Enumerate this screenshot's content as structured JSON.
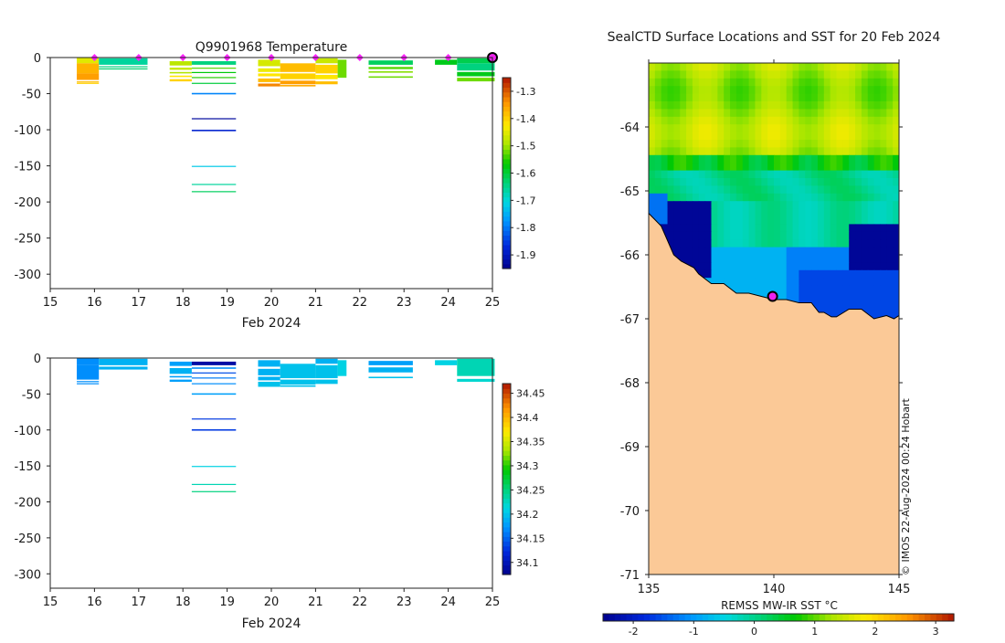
{
  "chart_data": [
    {
      "type": "heatmap",
      "name": "temperature-profile",
      "title": "Q9901968  Temperature",
      "xlabel": "Feb 2024",
      "ylabel": "",
      "xlim": [
        15,
        25
      ],
      "ylim": [
        -320,
        0
      ],
      "xticks": [
        "15",
        "16",
        "17",
        "18",
        "19",
        "20",
        "21",
        "22",
        "23",
        "24",
        "25"
      ],
      "xtick_values": [
        15,
        16,
        17,
        18,
        19,
        20,
        21,
        22,
        23,
        24,
        25
      ],
      "yticks": [
        "0",
        "-50",
        "-100",
        "-150",
        "-200",
        "-250",
        "-300"
      ],
      "ytick_values": [
        0,
        -50,
        -100,
        -150,
        -200,
        -250,
        -300
      ],
      "colorbar": {
        "ticks": [
          "-1.3",
          "-1.4",
          "-1.5",
          "-1.6",
          "-1.7",
          "-1.8",
          "-1.9"
        ],
        "tick_values": [
          -1.3,
          -1.4,
          -1.5,
          -1.6,
          -1.7,
          -1.8,
          -1.9
        ],
        "range": [
          -1.95,
          -1.25
        ]
      },
      "surface_markers": [
        16,
        17,
        18,
        19,
        20,
        21,
        22,
        23,
        24
      ],
      "latest_marker": 25,
      "profiles": [
        {
          "x0": 15.6,
          "x1": 16.1,
          "d0": 0,
          "d1": 8,
          "v": -1.45
        },
        {
          "x0": 15.6,
          "x1": 16.1,
          "d0": 8,
          "d1": 22,
          "v": -1.37
        },
        {
          "x0": 15.6,
          "x1": 16.1,
          "d0": 22,
          "d1": 31,
          "v": -1.35
        },
        {
          "x0": 15.6,
          "x1": 16.1,
          "d0": 33,
          "d1": 34,
          "v": -1.38
        },
        {
          "x0": 15.6,
          "x1": 16.1,
          "d0": 35,
          "d1": 36,
          "v": -1.4
        },
        {
          "x0": 16.1,
          "x1": 17.2,
          "d0": 1,
          "d1": 10,
          "v": -1.66
        },
        {
          "x0": 16.1,
          "x1": 17.2,
          "d0": 12,
          "d1": 13,
          "v": -1.64
        },
        {
          "x0": 16.1,
          "x1": 17.2,
          "d0": 15,
          "d1": 16,
          "v": -1.63
        },
        {
          "x0": 17.7,
          "x1": 18.2,
          "d0": 5,
          "d1": 11,
          "v": -1.48
        },
        {
          "x0": 17.7,
          "x1": 18.2,
          "d0": 14,
          "d1": 17,
          "v": -1.47
        },
        {
          "x0": 17.7,
          "x1": 18.2,
          "d0": 20,
          "d1": 22,
          "v": -1.49
        },
        {
          "x0": 17.7,
          "x1": 18.2,
          "d0": 25,
          "d1": 27,
          "v": -1.42
        },
        {
          "x0": 17.7,
          "x1": 18.2,
          "d0": 30,
          "d1": 33,
          "v": -1.4
        },
        {
          "x0": 18.2,
          "x1": 19.2,
          "d0": 5,
          "d1": 10,
          "v": -1.64
        },
        {
          "x0": 18.2,
          "x1": 19.2,
          "d0": 14,
          "d1": 15,
          "v": -1.53
        },
        {
          "x0": 18.2,
          "x1": 19.2,
          "d0": 20,
          "d1": 21,
          "v": -1.57
        },
        {
          "x0": 18.2,
          "x1": 19.2,
          "d0": 27,
          "d1": 28,
          "v": -1.55
        },
        {
          "x0": 18.2,
          "x1": 19.2,
          "d0": 35,
          "d1": 36,
          "v": -1.6
        },
        {
          "x0": 18.2,
          "x1": 19.2,
          "d0": 49,
          "d1": 51,
          "v": -1.79
        },
        {
          "x0": 18.2,
          "x1": 19.2,
          "d0": 84,
          "d1": 85,
          "v": -1.93
        },
        {
          "x0": 18.2,
          "x1": 19.2,
          "d0": 100,
          "d1": 102,
          "v": -1.88
        },
        {
          "x0": 18.2,
          "x1": 19.2,
          "d0": 150,
          "d1": 151,
          "v": -1.72
        },
        {
          "x0": 18.2,
          "x1": 19.2,
          "d0": 175,
          "d1": 176,
          "v": -1.66
        },
        {
          "x0": 18.2,
          "x1": 19.2,
          "d0": 185,
          "d1": 186,
          "v": -1.62
        },
        {
          "x0": 19.7,
          "x1": 20.2,
          "d0": 3,
          "d1": 12,
          "v": -1.46
        },
        {
          "x0": 19.7,
          "x1": 20.2,
          "d0": 15,
          "d1": 20,
          "v": -1.44
        },
        {
          "x0": 19.7,
          "x1": 20.2,
          "d0": 22,
          "d1": 26,
          "v": -1.42
        },
        {
          "x0": 19.7,
          "x1": 20.2,
          "d0": 29,
          "d1": 34,
          "v": -1.38
        },
        {
          "x0": 19.7,
          "x1": 20.2,
          "d0": 36,
          "d1": 40,
          "v": -1.33
        },
        {
          "x0": 20.2,
          "x1": 21.0,
          "d0": 8,
          "d1": 20,
          "v": -1.38
        },
        {
          "x0": 20.2,
          "x1": 21.0,
          "d0": 22,
          "d1": 30,
          "v": -1.4
        },
        {
          "x0": 20.2,
          "x1": 21.0,
          "d0": 32,
          "d1": 37,
          "v": -1.35
        },
        {
          "x0": 20.2,
          "x1": 21.0,
          "d0": 38,
          "d1": 40,
          "v": -1.36
        },
        {
          "x0": 21.0,
          "x1": 21.5,
          "d0": 1,
          "d1": 8,
          "v": -1.47
        },
        {
          "x0": 21.0,
          "x1": 21.5,
          "d0": 10,
          "d1": 22,
          "v": -1.4
        },
        {
          "x0": 21.0,
          "x1": 21.5,
          "d0": 24,
          "d1": 30,
          "v": -1.42
        },
        {
          "x0": 21.0,
          "x1": 21.5,
          "d0": 33,
          "d1": 37,
          "v": -1.38
        },
        {
          "x0": 21.5,
          "x1": 21.7,
          "d0": 3,
          "d1": 28,
          "v": -1.52
        },
        {
          "x0": 22.2,
          "x1": 23.2,
          "d0": 4,
          "d1": 10,
          "v": -1.62
        },
        {
          "x0": 22.2,
          "x1": 23.2,
          "d0": 13,
          "d1": 16,
          "v": -1.53
        },
        {
          "x0": 22.2,
          "x1": 23.2,
          "d0": 19,
          "d1": 21,
          "v": -1.51
        },
        {
          "x0": 22.2,
          "x1": 23.2,
          "d0": 26,
          "d1": 28,
          "v": -1.52
        },
        {
          "x0": 23.7,
          "x1": 24.2,
          "d0": 3,
          "d1": 10,
          "v": -1.58
        },
        {
          "x0": 24.2,
          "x1": 25.05,
          "d0": 1,
          "d1": 8,
          "v": -1.61
        },
        {
          "x0": 24.2,
          "x1": 25.05,
          "d0": 8,
          "d1": 18,
          "v": -1.64
        },
        {
          "x0": 24.2,
          "x1": 25.05,
          "d0": 20,
          "d1": 26,
          "v": -1.58
        },
        {
          "x0": 24.2,
          "x1": 25.05,
          "d0": 28,
          "d1": 33,
          "v": -1.52
        }
      ]
    },
    {
      "type": "heatmap",
      "name": "salinity-profile",
      "title": "",
      "xlabel": "Feb 2024",
      "xlim": [
        15,
        25
      ],
      "ylim": [
        -320,
        0
      ],
      "xticks": [
        "15",
        "16",
        "17",
        "18",
        "19",
        "20",
        "21",
        "22",
        "23",
        "24",
        "25"
      ],
      "xtick_values": [
        15,
        16,
        17,
        18,
        19,
        20,
        21,
        22,
        23,
        24,
        25
      ],
      "yticks": [
        "0",
        "-50",
        "-100",
        "-150",
        "-200",
        "-250",
        "-300"
      ],
      "ytick_values": [
        0,
        -50,
        -100,
        -150,
        -200,
        -250,
        -300
      ],
      "colorbar": {
        "ticks": [
          "34.45",
          "34.4",
          "34.35",
          "34.3",
          "34.25",
          "34.2",
          "34.15",
          "34.1"
        ],
        "tick_values": [
          34.45,
          34.4,
          34.35,
          34.3,
          34.25,
          34.2,
          34.15,
          34.1
        ],
        "range": [
          34.075,
          34.47
        ]
      },
      "profiles": [
        {
          "x0": 15.6,
          "x1": 16.1,
          "d0": 0,
          "d1": 10,
          "v": 34.17
        },
        {
          "x0": 15.6,
          "x1": 16.1,
          "d0": 10,
          "d1": 30,
          "v": 34.17
        },
        {
          "x0": 15.6,
          "x1": 16.1,
          "d0": 32,
          "d1": 33,
          "v": 34.17
        },
        {
          "x0": 15.6,
          "x1": 16.1,
          "d0": 35,
          "d1": 36,
          "v": 34.17
        },
        {
          "x0": 16.1,
          "x1": 17.2,
          "d0": 1,
          "d1": 10,
          "v": 34.19
        },
        {
          "x0": 16.1,
          "x1": 17.2,
          "d0": 12,
          "d1": 16,
          "v": 34.19
        },
        {
          "x0": 17.7,
          "x1": 18.2,
          "d0": 5,
          "d1": 11,
          "v": 34.18
        },
        {
          "x0": 17.7,
          "x1": 18.2,
          "d0": 14,
          "d1": 22,
          "v": 34.19
        },
        {
          "x0": 17.7,
          "x1": 18.2,
          "d0": 25,
          "d1": 27,
          "v": 34.18
        },
        {
          "x0": 17.7,
          "x1": 18.2,
          "d0": 30,
          "d1": 33,
          "v": 34.18
        },
        {
          "x0": 18.2,
          "x1": 19.2,
          "d0": 5,
          "d1": 10,
          "v": 34.09
        },
        {
          "x0": 18.2,
          "x1": 19.2,
          "d0": 13,
          "d1": 15,
          "v": 34.17
        },
        {
          "x0": 18.2,
          "x1": 19.2,
          "d0": 20,
          "d1": 21,
          "v": 34.14
        },
        {
          "x0": 18.2,
          "x1": 19.2,
          "d0": 27,
          "d1": 28,
          "v": 34.16
        },
        {
          "x0": 18.2,
          "x1": 19.2,
          "d0": 35,
          "d1": 36,
          "v": 34.17
        },
        {
          "x0": 18.2,
          "x1": 19.2,
          "d0": 49,
          "d1": 51,
          "v": 34.18
        },
        {
          "x0": 18.2,
          "x1": 19.2,
          "d0": 84,
          "d1": 85,
          "v": 34.13
        },
        {
          "x0": 18.2,
          "x1": 19.2,
          "d0": 99,
          "d1": 101,
          "v": 34.13
        },
        {
          "x0": 18.2,
          "x1": 19.2,
          "d0": 150,
          "d1": 151,
          "v": 34.21
        },
        {
          "x0": 18.2,
          "x1": 19.2,
          "d0": 175,
          "d1": 176,
          "v": 34.23
        },
        {
          "x0": 18.2,
          "x1": 19.2,
          "d0": 185,
          "d1": 186,
          "v": 34.25
        },
        {
          "x0": 19.7,
          "x1": 20.2,
          "d0": 3,
          "d1": 12,
          "v": 34.19
        },
        {
          "x0": 19.7,
          "x1": 20.2,
          "d0": 15,
          "d1": 24,
          "v": 34.19
        },
        {
          "x0": 19.7,
          "x1": 20.2,
          "d0": 26,
          "d1": 31,
          "v": 34.19
        },
        {
          "x0": 19.7,
          "x1": 20.2,
          "d0": 33,
          "d1": 40,
          "v": 34.2
        },
        {
          "x0": 20.2,
          "x1": 21.0,
          "d0": 8,
          "d1": 28,
          "v": 34.2
        },
        {
          "x0": 20.2,
          "x1": 21.0,
          "d0": 30,
          "d1": 37,
          "v": 34.2
        },
        {
          "x0": 20.2,
          "x1": 21.0,
          "d0": 38,
          "d1": 40,
          "v": 34.2
        },
        {
          "x0": 21.0,
          "x1": 21.5,
          "d0": 1,
          "d1": 8,
          "v": 34.19
        },
        {
          "x0": 21.0,
          "x1": 21.5,
          "d0": 10,
          "d1": 28,
          "v": 34.2
        },
        {
          "x0": 21.0,
          "x1": 21.5,
          "d0": 30,
          "d1": 36,
          "v": 34.2
        },
        {
          "x0": 21.5,
          "x1": 21.7,
          "d0": 3,
          "d1": 25,
          "v": 34.21
        },
        {
          "x0": 22.2,
          "x1": 23.2,
          "d0": 4,
          "d1": 10,
          "v": 34.18
        },
        {
          "x0": 22.2,
          "x1": 23.2,
          "d0": 13,
          "d1": 20,
          "v": 34.19
        },
        {
          "x0": 22.2,
          "x1": 23.2,
          "d0": 26,
          "d1": 28,
          "v": 34.2
        },
        {
          "x0": 23.7,
          "x1": 24.2,
          "d0": 3,
          "d1": 10,
          "v": 34.21
        },
        {
          "x0": 24.2,
          "x1": 25.05,
          "d0": 1,
          "d1": 25,
          "v": 34.23
        },
        {
          "x0": 24.2,
          "x1": 25.05,
          "d0": 29,
          "d1": 33,
          "v": 34.22
        }
      ]
    },
    {
      "type": "heatmap",
      "name": "sst-map",
      "title": "SealCTD Surface Locations and SST for 20 Feb 2024",
      "xlabel": "",
      "ylabel": "",
      "xlim": [
        135,
        145
      ],
      "ylim": [
        -71,
        -63
      ],
      "xticks": [
        "135",
        "140",
        "145"
      ],
      "xtick_values": [
        135,
        140,
        145
      ],
      "yticks": [
        "-64",
        "-65",
        "-66",
        "-67",
        "-68",
        "-69",
        "-70",
        "-71"
      ],
      "ytick_values": [
        -64,
        -65,
        -66,
        -67,
        -68,
        -69,
        -70,
        -71
      ],
      "colorbar": {
        "label": "REMSS MW-IR SST °C",
        "ticks": [
          "-2",
          "-1",
          "0",
          "1",
          "2",
          "3"
        ],
        "tick_values": [
          -2,
          -1,
          0,
          1,
          2,
          3
        ],
        "range": [
          -2.5,
          3.3
        ]
      },
      "seal_location": {
        "lon": 139.95,
        "lat": -66.65
      },
      "coastline_lon": [
        135.0,
        135.5,
        136.0,
        136.3,
        136.8,
        137.0,
        137.5,
        138.0,
        138.5,
        139.0,
        139.5,
        140.0,
        140.5,
        141.0,
        141.5,
        141.8,
        142.0,
        142.3,
        142.5,
        143.0,
        143.5,
        144.0,
        144.5,
        144.8,
        145.0
      ],
      "coastline_lat": [
        -65.35,
        -65.55,
        -66.0,
        -66.1,
        -66.2,
        -66.3,
        -66.45,
        -66.45,
        -66.6,
        -66.6,
        -66.65,
        -66.7,
        -66.7,
        -66.75,
        -66.75,
        -66.9,
        -66.9,
        -66.97,
        -66.97,
        -66.85,
        -66.85,
        -67.0,
        -66.95,
        -67.0,
        -66.95
      ],
      "watermark": "© IMOS 22-Aug-2024 00:24 Hobart"
    }
  ]
}
